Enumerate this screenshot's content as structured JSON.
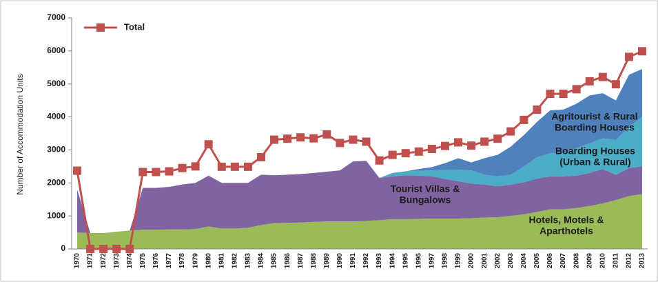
{
  "chart_data": {
    "type": "stacked-area-line",
    "y_label": "Number of Accommodation Units",
    "categories": [
      "1970",
      "1971",
      "1972",
      "1973",
      "1974",
      "1975",
      "1976",
      "1977",
      "1978",
      "1979",
      "1980",
      "1981",
      "1982",
      "1983",
      "1984",
      "1985",
      "1986",
      "1987",
      "1988",
      "1989",
      "1990",
      "1991",
      "1992",
      "1993",
      "1994",
      "1995",
      "1996",
      "1997",
      "1998",
      "1999",
      "2000",
      "2001",
      "2002",
      "2003",
      "2004",
      "2005",
      "2006",
      "2007",
      "2008",
      "2009",
      "2010",
      "2011",
      "2012",
      "2013"
    ],
    "series": [
      {
        "name": "Hotels, Motels & Aparthotels",
        "color": "#9bbb59",
        "values": [
          500,
          480,
          480,
          520,
          560,
          580,
          580,
          590,
          590,
          600,
          680,
          620,
          620,
          640,
          720,
          780,
          790,
          800,
          820,
          830,
          830,
          830,
          850,
          870,
          900,
          900,
          910,
          920,
          920,
          920,
          930,
          950,
          960,
          1000,
          1050,
          1120,
          1200,
          1200,
          1240,
          1300,
          1380,
          1480,
          1600,
          1660
        ]
      },
      {
        "name": "Tourist Villas & Bungalows",
        "color": "#8064a2",
        "values": [
          1300,
          0,
          0,
          0,
          0,
          1270,
          1270,
          1290,
          1360,
          1400,
          1540,
          1380,
          1380,
          1360,
          1530,
          1450,
          1460,
          1470,
          1480,
          1510,
          1550,
          1820,
          1820,
          1280,
          1300,
          1330,
          1310,
          1280,
          1200,
          1130,
          1050,
          1000,
          940,
          950,
          970,
          1010,
          1000,
          1000,
          980,
          1000,
          1040,
          770,
          850,
          840
        ]
      },
      {
        "name": "Boarding Houses (Urban & Rural)",
        "color": "#4bacc6",
        "values": [
          null,
          null,
          null,
          null,
          null,
          null,
          null,
          null,
          null,
          null,
          null,
          null,
          null,
          null,
          null,
          null,
          null,
          null,
          null,
          null,
          null,
          null,
          null,
          0,
          80,
          120,
          150,
          180,
          280,
          350,
          400,
          300,
          300,
          300,
          480,
          650,
          700,
          700,
          830,
          900,
          930,
          1050,
          1250,
          1500
        ]
      },
      {
        "name": "Agritourist & Rural Boarding Houses",
        "color": "#4f81bd",
        "values": [
          null,
          null,
          null,
          null,
          null,
          null,
          null,
          null,
          null,
          null,
          null,
          null,
          null,
          null,
          null,
          null,
          null,
          null,
          null,
          null,
          null,
          null,
          null,
          0,
          20,
          0,
          50,
          100,
          200,
          350,
          240,
          500,
          650,
          850,
          950,
          1070,
          1300,
          1320,
          1350,
          1450,
          1370,
          1200,
          1580,
          1450
        ]
      },
      {
        "name": "Total",
        "color": "#c0504d",
        "line": true,
        "values": [
          2370,
          0,
          0,
          0,
          0,
          2330,
          2330,
          2350,
          2450,
          2500,
          3170,
          2490,
          2490,
          2490,
          2780,
          3310,
          3340,
          3380,
          3350,
          3470,
          3210,
          3310,
          3250,
          2680,
          2850,
          2900,
          2950,
          3030,
          3120,
          3230,
          3130,
          3250,
          3340,
          3560,
          3910,
          4220,
          4700,
          4700,
          4840,
          5080,
          5210,
          4990,
          5820,
          5990
        ]
      }
    ],
    "annotations": [
      [
        "Hotels, Motels &",
        "Aparthotels"
      ],
      [
        "Tourist Villas &",
        "Bungalows"
      ],
      [
        "Boarding Houses",
        "(Urban & Rural)"
      ],
      [
        "Agritourist & Rural",
        "Boarding Houses"
      ]
    ],
    "legend_entry": "Total",
    "ylim": [
      0,
      7000
    ],
    "yticks": [
      0,
      1000,
      2000,
      3000,
      4000,
      5000,
      6000,
      7000
    ],
    "grid": false
  }
}
